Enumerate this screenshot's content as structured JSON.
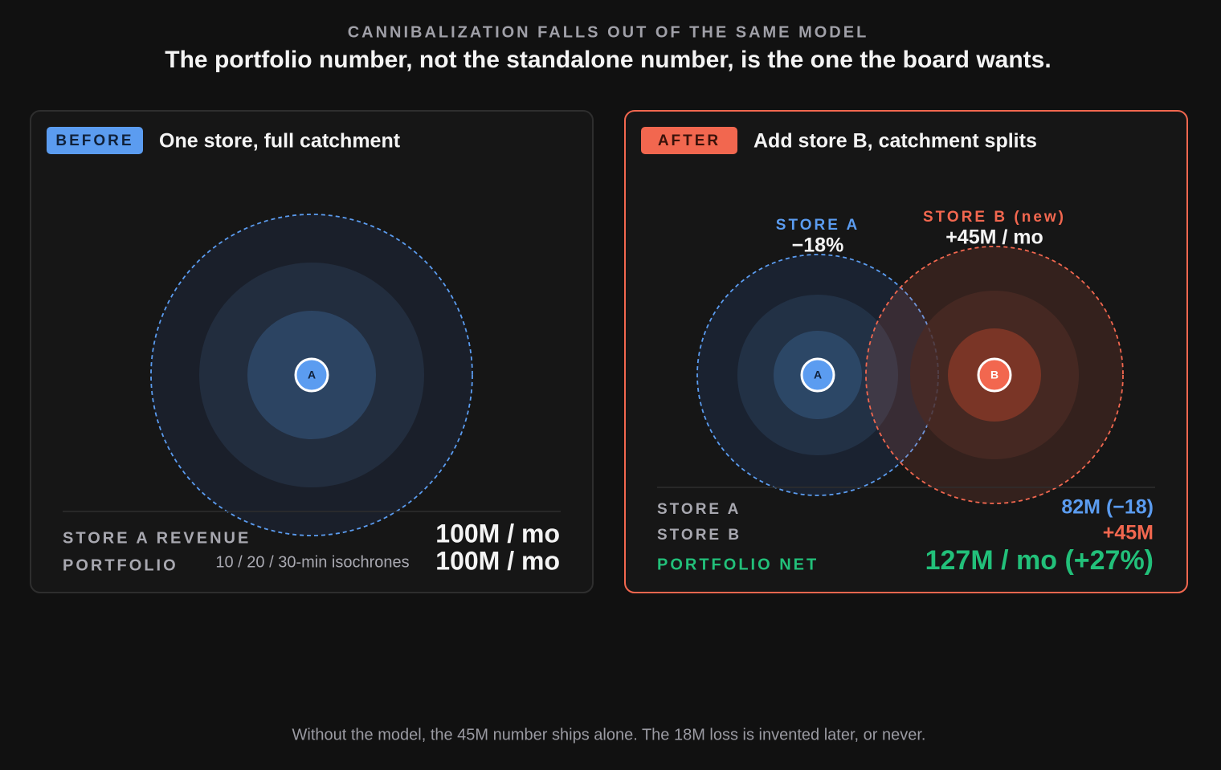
{
  "header": {
    "kicker": "CANNIBALIZATION FALLS OUT OF THE SAME MODEL",
    "title": "The portfolio number, not the standalone number, is the one the board wants."
  },
  "before": {
    "badge": "BEFORE",
    "title": "One store, full catchment",
    "store_marker": "A",
    "caption": "10 / 20 / 30-min isochrones",
    "rows": [
      {
        "label": "STORE A REVENUE",
        "value": "100M / mo"
      },
      {
        "label": "PORTFOLIO",
        "value": "100M / mo"
      }
    ]
  },
  "after": {
    "badge": "AFTER",
    "title": "Add store B, catchment splits",
    "store_a": {
      "marker": "A",
      "label": "STORE A",
      "change": "−18%"
    },
    "store_b": {
      "marker": "B",
      "label": "STORE B (new)",
      "change": "+45M / mo"
    },
    "rows": [
      {
        "label": "STORE A",
        "value": "82M (−18)"
      },
      {
        "label": "STORE B",
        "value": "+45M"
      },
      {
        "label": "PORTFOLIO NET",
        "value": "127M / mo (+27%)"
      }
    ]
  },
  "footer": "Without the model, the 45M number ships alone. The 18M loss is invented later, or never."
}
